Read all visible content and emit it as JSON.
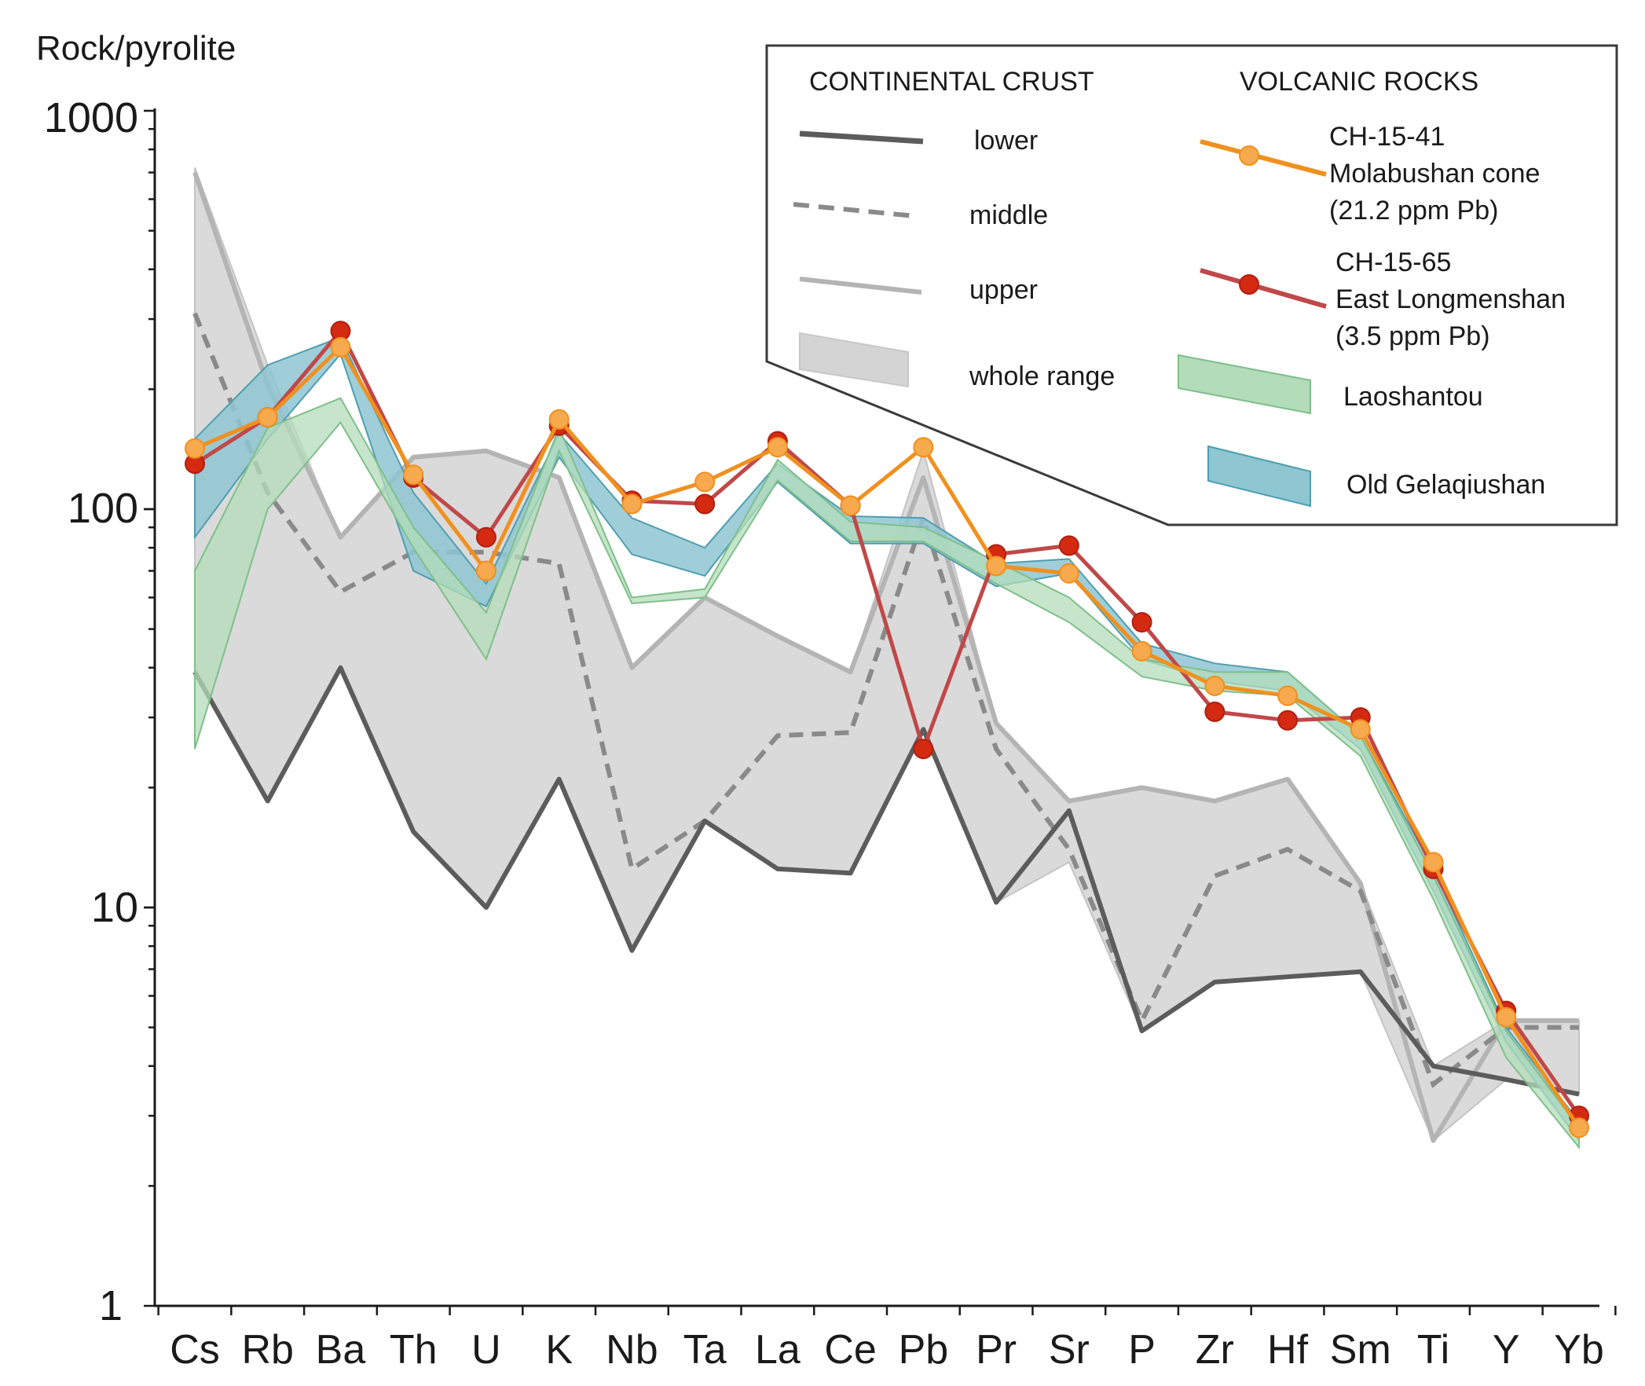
{
  "chart_data": {
    "type": "line",
    "y_axis_title": "Rock/pyrolite",
    "y_scale": "log",
    "ylim": [
      1,
      1000
    ],
    "y_ticks": [
      "1",
      "10",
      "100",
      "1000"
    ],
    "categories": [
      "Cs",
      "Rb",
      "Ba",
      "Th",
      "U",
      "K",
      "Nb",
      "Ta",
      "La",
      "Ce",
      "Pb",
      "Pr",
      "Sr",
      "P",
      "Zr",
      "Hf",
      "Sm",
      "Ti",
      "Y",
      "Yb"
    ],
    "legend": {
      "crust_header": "CONTINENTAL CRUST",
      "volcanic_header": "VOLCANIC ROCKS",
      "lower": "lower",
      "middle": "middle",
      "upper": "upper",
      "whole_range": "whole range",
      "ch41_line1": "CH-15-41",
      "ch41_line2": "Molabushan cone",
      "ch41_line3": "(21.2 ppm Pb)",
      "ch65_line1": "CH-15-65",
      "ch65_line2": "East Longmenshan",
      "ch65_line3": "(3.5 ppm Pb)",
      "laoshantou": "Laoshantou",
      "old_gelaqiushan": "Old Gelaqiushan"
    },
    "colors": {
      "lower": "#5c5c5c",
      "middle": "#8a8a8a",
      "upper": "#b4b4b4",
      "whole_range_fill": "#d4d4d4",
      "ch41": "#f0901e",
      "ch41_marker": "#f7a94e",
      "ch65_line": "#c04848",
      "ch65_marker": "#d42a12",
      "laoshantou_fill": "#b3dcb9",
      "laoshantou_stroke": "#7fbf8a",
      "gelaqiushan_fill": "#8ec6d2",
      "gelaqiushan_stroke": "#4f9eb0"
    },
    "series": [
      {
        "name": "lower",
        "kind": "line",
        "style": "solid",
        "values": [
          39,
          18.5,
          40,
          15.5,
          10,
          21,
          7.8,
          16.5,
          12.5,
          12.2,
          28,
          10.3,
          17.5,
          4.9,
          6.5,
          6.7,
          6.9,
          4,
          3.7,
          3.4
        ]
      },
      {
        "name": "middle",
        "kind": "line",
        "style": "dashed",
        "values": [
          310,
          110,
          62,
          78,
          78,
          73,
          12.5,
          16.5,
          27,
          27.5,
          95,
          25,
          14,
          5.2,
          12,
          14,
          11,
          3.6,
          5,
          5
        ]
      },
      {
        "name": "upper",
        "kind": "line",
        "style": "solid",
        "values": [
          700,
          205,
          85,
          135,
          140,
          120,
          40,
          60,
          48,
          39,
          120,
          29,
          18.5,
          20,
          18.5,
          21,
          11.5,
          2.6,
          5.2,
          5.2
        ]
      },
      {
        "name": "whole range",
        "kind": "band",
        "upper": [
          720,
          230,
          85,
          135,
          140,
          120,
          40,
          60,
          48,
          39,
          140,
          29,
          18.5,
          20,
          18.5,
          21,
          11.5,
          4,
          5.2,
          5.2
        ],
        "lower": [
          39,
          18.5,
          40,
          15.5,
          10,
          21,
          7.8,
          16.5,
          12.5,
          12.2,
          28,
          10.3,
          13,
          4.9,
          6.5,
          6.7,
          6.9,
          2.6,
          3.7,
          3.4
        ]
      },
      {
        "name": "Old Gelaqiushan",
        "kind": "band",
        "upper": [
          150,
          230,
          270,
          110,
          65,
          155,
          95,
          80,
          130,
          96,
          95,
          73,
          75,
          46,
          41,
          39,
          27,
          12.5,
          5,
          2.9
        ],
        "lower": [
          85,
          150,
          245,
          70,
          57,
          135,
          77,
          68,
          117,
          82,
          82,
          64,
          69,
          42,
          37,
          35,
          25,
          11,
          4.6,
          2.6
        ]
      },
      {
        "name": "Laoshantou",
        "kind": "band",
        "upper": [
          70,
          160,
          190,
          90,
          55,
          160,
          60,
          63,
          133,
          93,
          90,
          74,
          60,
          42,
          39,
          39,
          27,
          12,
          4.9,
          2.8
        ],
        "lower": [
          25,
          100,
          165,
          80,
          42,
          140,
          58,
          60,
          118,
          83,
          83,
          65,
          52,
          38,
          35,
          34,
          24,
          10.5,
          4.2,
          2.5
        ]
      },
      {
        "name": "CH-15-41 Molabushan cone (21.2 ppm Pb)",
        "kind": "line_markers",
        "values": [
          142,
          170,
          255,
          122,
          70,
          168,
          103,
          117,
          143,
          102,
          143,
          72,
          69,
          44,
          36,
          34,
          28,
          13,
          5.3,
          2.8
        ]
      },
      {
        "name": "CH-15-65 East Longmenshan (3.5 ppm Pb)",
        "kind": "line_markers",
        "values": [
          130,
          170,
          280,
          120,
          85,
          162,
          105,
          103,
          148,
          102,
          25,
          77,
          81,
          52,
          31,
          29.5,
          30,
          12.5,
          5.5,
          3
        ]
      }
    ]
  }
}
